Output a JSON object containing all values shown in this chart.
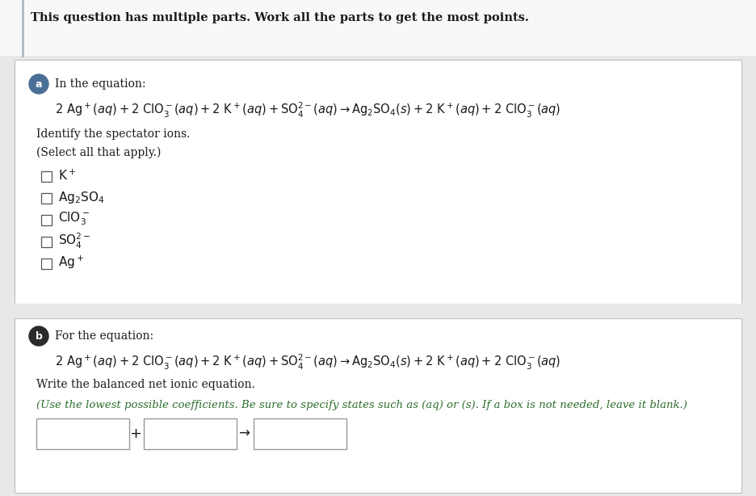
{
  "bg_color": "#e8e8e8",
  "white_bg": "#ffffff",
  "header_text": "This question has multiple parts. Work all the parts to get the most points.",
  "part_a_intro": "In the equation:",
  "part_b_intro": "For the equation:",
  "identify_text": "Identify the spectator ions.",
  "select_text": "(Select all that apply.)",
  "write_text": "Write the balanced net ionic equation.",
  "use_text": "(Use the lowest possible coefficients. Be sure to specify states such as (aq) or (s). If a box is not needed, leave it blank.)",
  "label_color_a": "#4a7098",
  "label_color_b": "#2b2b2b",
  "text_color": "#1a1a1a",
  "serif_color": "#1a1a1a",
  "green_color": "#2d6e2d",
  "border_color": "#c0c0c0",
  "left_bar_color": "#8899aa"
}
